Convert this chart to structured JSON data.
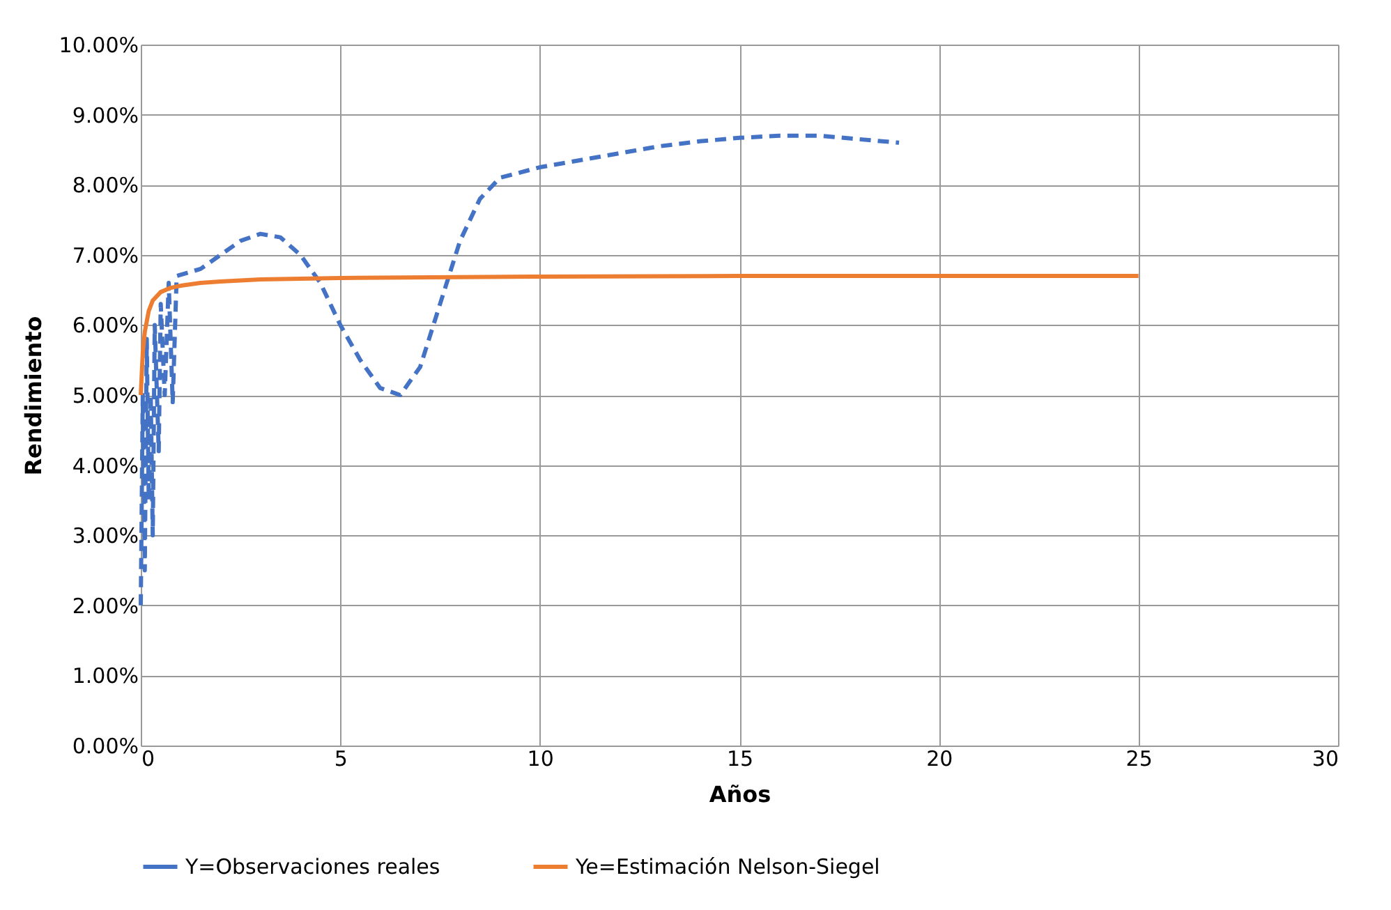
{
  "chart_data": {
    "type": "line",
    "xlabel": "Años",
    "ylabel": "Rendimiento",
    "xlim": [
      0,
      30
    ],
    "xticks": [
      0,
      5,
      10,
      15,
      20,
      25,
      30
    ],
    "ylim": [
      0,
      10
    ],
    "yticks": [
      {
        "value": 0,
        "label": "0.00%"
      },
      {
        "value": 1,
        "label": "1.00%"
      },
      {
        "value": 2,
        "label": "2.00%"
      },
      {
        "value": 3,
        "label": "3.00%"
      },
      {
        "value": 4,
        "label": "4.00%"
      },
      {
        "value": 5,
        "label": "5.00%"
      },
      {
        "value": 6,
        "label": "6.00%"
      },
      {
        "value": 7,
        "label": "7.00%"
      },
      {
        "value": 8,
        "label": "8.00%"
      },
      {
        "value": 9,
        "label": "9.00%"
      },
      {
        "value": 10,
        "label": "10.00%"
      }
    ],
    "grid": true,
    "legend": "bottom",
    "marker": "none",
    "series": [
      {
        "name": "Y=Observaciones reales",
        "color": "#4472c4",
        "line_style": "dashed",
        "x": [
          0,
          0.05,
          0.1,
          0.15,
          0.2,
          0.25,
          0.3,
          0.35,
          0.45,
          0.5,
          0.6,
          0.7,
          0.8,
          0.9,
          1.5,
          2,
          2.5,
          3,
          3.5,
          4,
          4.5,
          5,
          5.5,
          6,
          6.5,
          7,
          7.5,
          8,
          8.5,
          9,
          10,
          11,
          12,
          13,
          14,
          15,
          16,
          17,
          18,
          19
        ],
        "values": [
          2.0,
          5.0,
          2.5,
          5.8,
          3.5,
          5.0,
          3.0,
          6.0,
          4.2,
          6.3,
          5.0,
          6.6,
          4.9,
          6.7,
          6.8,
          7.0,
          7.2,
          7.3,
          7.25,
          7.0,
          6.6,
          6.0,
          5.5,
          5.1,
          5.0,
          5.4,
          6.3,
          7.2,
          7.8,
          8.1,
          8.25,
          8.35,
          8.45,
          8.55,
          8.62,
          8.67,
          8.7,
          8.7,
          8.65,
          8.6
        ]
      },
      {
        "name": "Ye=Estimación Nelson-Siegel",
        "color": "#ed7d31",
        "line_style": "solid",
        "x": [
          0,
          0.05,
          0.1,
          0.2,
          0.3,
          0.5,
          0.75,
          1,
          1.5,
          2,
          3,
          5,
          10,
          15,
          20,
          25
        ],
        "values": [
          5.0,
          5.6,
          5.9,
          6.2,
          6.35,
          6.47,
          6.53,
          6.56,
          6.6,
          6.62,
          6.65,
          6.67,
          6.69,
          6.7,
          6.7,
          6.7
        ]
      }
    ]
  }
}
